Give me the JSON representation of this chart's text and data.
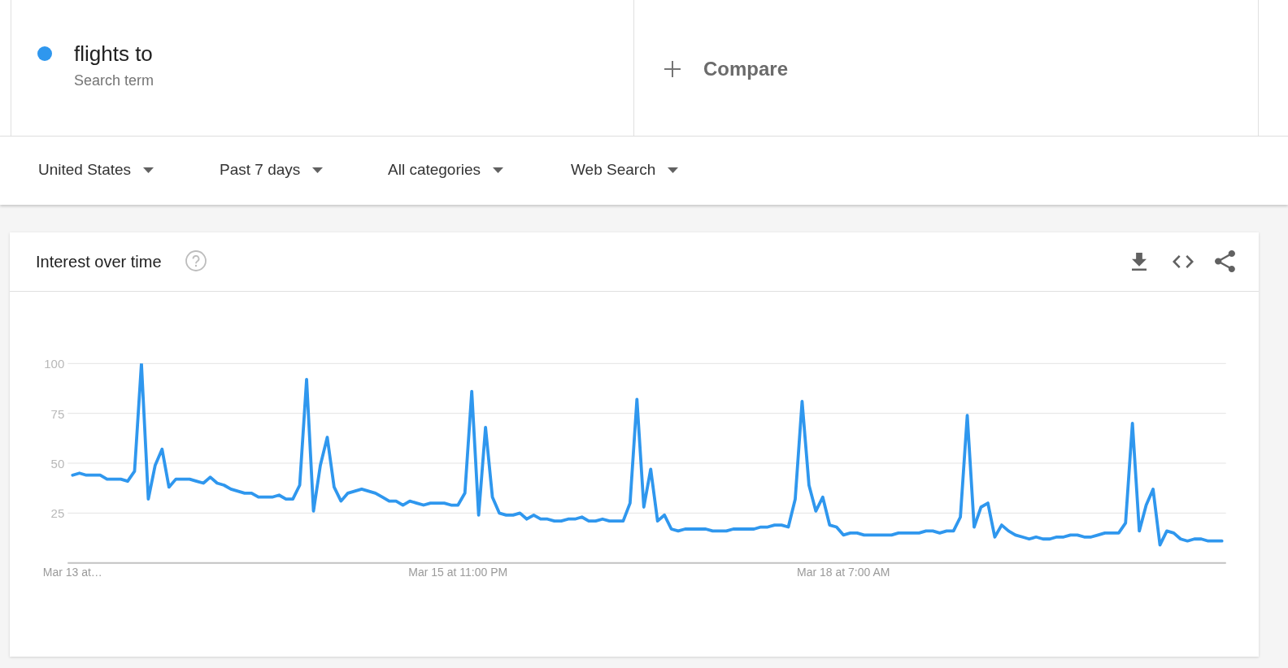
{
  "chart_data": {
    "type": "line",
    "title": "Interest over time",
    "annotations": [
      "Search term",
      "Compare",
      "United States",
      "Past 7 days",
      "All categories",
      "Web Search"
    ],
    "legend": "top left",
    "grid": "y",
    "categories": [
      "Mar 13 at…",
      null,
      null,
      null,
      null,
      null,
      null,
      null,
      null,
      null,
      null,
      null,
      null,
      null,
      null,
      null,
      null,
      null,
      null,
      null,
      null,
      null,
      null,
      null,
      null,
      null,
      null,
      null,
      null,
      null,
      null,
      null,
      null,
      null,
      null,
      null,
      null,
      null,
      null,
      null,
      null,
      null,
      null,
      null,
      null,
      null,
      null,
      null,
      null,
      null,
      null,
      null,
      null,
      null,
      null,
      null,
      "Mar 15 at 11:00 PM",
      null,
      null,
      null,
      null,
      null,
      null,
      null,
      null,
      null,
      null,
      null,
      null,
      null,
      null,
      null,
      null,
      null,
      null,
      null,
      null,
      null,
      null,
      null,
      null,
      null,
      null,
      null,
      null,
      null,
      null,
      null,
      null,
      null,
      null,
      null,
      null,
      null,
      null,
      null,
      null,
      null,
      null,
      null,
      null,
      null,
      null,
      null,
      null,
      null,
      null,
      null,
      null,
      null,
      null,
      null,
      "Mar 18 at 7:00 AM",
      null,
      null,
      null,
      null,
      null,
      null,
      null,
      null,
      null,
      null,
      null,
      null,
      null,
      null,
      null,
      null,
      null,
      null,
      null,
      null,
      null,
      null,
      null,
      null,
      null,
      null,
      null,
      null,
      null,
      null,
      null,
      null,
      null,
      null,
      null,
      null,
      null,
      null,
      null,
      null,
      null,
      null,
      null,
      null,
      null,
      null,
      null,
      null,
      null,
      null,
      null,
      null,
      null,
      null,
      null
    ],
    "ylim": [
      0,
      100
    ],
    "yticks": [
      25,
      50,
      75,
      100
    ],
    "series": [
      {
        "name": "flights to",
        "color": "#2f97ee",
        "values": [
          44,
          45,
          44,
          44,
          44,
          42,
          42,
          42,
          41,
          46,
          100,
          32,
          49,
          57,
          38,
          42,
          42,
          42,
          41,
          40,
          43,
          40,
          39,
          37,
          36,
          35,
          35,
          33,
          33,
          33,
          34,
          32,
          32,
          39,
          92,
          26,
          49,
          63,
          38,
          31,
          35,
          36,
          37,
          36,
          35,
          33,
          31,
          31,
          29,
          31,
          30,
          29,
          30,
          30,
          30,
          29,
          29,
          35,
          86,
          24,
          68,
          33,
          25,
          24,
          24,
          25,
          22,
          24,
          22,
          22,
          21,
          21,
          22,
          22,
          23,
          21,
          21,
          22,
          21,
          21,
          21,
          30,
          82,
          28,
          47,
          21,
          24,
          17,
          16,
          17,
          17,
          17,
          17,
          16,
          16,
          16,
          17,
          17,
          17,
          17,
          18,
          18,
          19,
          19,
          18,
          32,
          81,
          39,
          26,
          33,
          19,
          18,
          14,
          15,
          15,
          14,
          14,
          14,
          14,
          14,
          15,
          15,
          15,
          15,
          16,
          16,
          15,
          16,
          16,
          23,
          74,
          18,
          28,
          30,
          13,
          19,
          16,
          14,
          13,
          12,
          13,
          12,
          12,
          13,
          13,
          14,
          14,
          13,
          13,
          14,
          15,
          15,
          15,
          20,
          70,
          16,
          29,
          37,
          9,
          16,
          15,
          12,
          11,
          12,
          12,
          11,
          11,
          11
        ]
      }
    ]
  }
}
